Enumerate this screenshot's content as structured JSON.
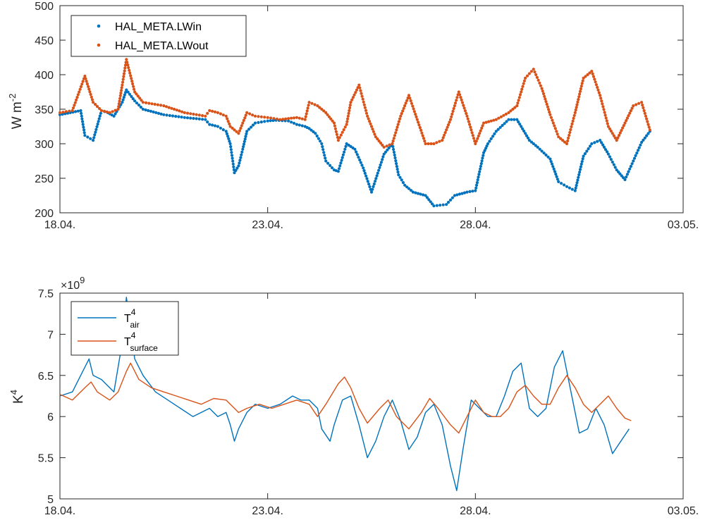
{
  "chart_data": [
    {
      "type": "scatter",
      "xlabel": "",
      "ylabel": "W m",
      "ylabel_exp": "-2",
      "xlim": [
        "2016-04-18",
        "2016-05-03"
      ],
      "ylim": [
        200,
        500
      ],
      "xticks": [
        "18.04.",
        "23.04.",
        "28.04.",
        "03.05."
      ],
      "yticks": [
        "200",
        "250",
        "300",
        "350",
        "400",
        "450",
        "500"
      ],
      "grid": false,
      "legend_position": "top-left",
      "colors": {
        "LWin": "#0072BD",
        "LWout": "#D95319"
      },
      "series": [
        {
          "name": "HAL_META.LWin",
          "color": "#0072BD",
          "points": [
            [
              0,
              342
            ],
            [
              0.5,
              348
            ],
            [
              0.6,
              312
            ],
            [
              0.8,
              305
            ],
            [
              1,
              348
            ],
            [
              1.15,
              345
            ],
            [
              1.3,
              340
            ],
            [
              1.5,
              360
            ],
            [
              1.6,
              378
            ],
            [
              1.8,
              362
            ],
            [
              2,
              350
            ],
            [
              2.5,
              342
            ],
            [
              3,
              338
            ],
            [
              3.5,
              335
            ],
            [
              3.6,
              328
            ],
            [
              3.8,
              325
            ],
            [
              4,
              318
            ],
            [
              4.1,
              300
            ],
            [
              4.2,
              258
            ],
            [
              4.3,
              268
            ],
            [
              4.4,
              292
            ],
            [
              4.5,
              318
            ],
            [
              4.7,
              330
            ],
            [
              5,
              333
            ],
            [
              5.2,
              334
            ],
            [
              5.5,
              333
            ],
            [
              5.7,
              328
            ],
            [
              5.9,
              325
            ],
            [
              6,
              322
            ],
            [
              6.15,
              315
            ],
            [
              6.3,
              300
            ],
            [
              6.4,
              275
            ],
            [
              6.6,
              262
            ],
            [
              6.7,
              260
            ],
            [
              6.9,
              300
            ],
            [
              7.1,
              292
            ],
            [
              7.3,
              265
            ],
            [
              7.5,
              230
            ],
            [
              7.8,
              285
            ],
            [
              8,
              300
            ],
            [
              8.15,
              255
            ],
            [
              8.3,
              240
            ],
            [
              8.5,
              230
            ],
            [
              8.8,
              225
            ],
            [
              9,
              210
            ],
            [
              9.3,
              212
            ],
            [
              9.5,
              225
            ],
            [
              9.8,
              230
            ],
            [
              10,
              232
            ],
            [
              10.2,
              287
            ],
            [
              10.3,
              300
            ],
            [
              10.5,
              318
            ],
            [
              10.8,
              335
            ],
            [
              11,
              335
            ],
            [
              11.3,
              305
            ],
            [
              11.5,
              295
            ],
            [
              11.8,
              278
            ],
            [
              12,
              245
            ],
            [
              12.2,
              238
            ],
            [
              12.4,
              232
            ],
            [
              12.6,
              282
            ],
            [
              12.8,
              300
            ],
            [
              13,
              305
            ],
            [
              13.2,
              285
            ],
            [
              13.4,
              262
            ],
            [
              13.6,
              248
            ],
            [
              13.8,
              275
            ],
            [
              14,
              302
            ],
            [
              14.2,
              318
            ]
          ]
        },
        {
          "name": "HAL_META.LWout",
          "color": "#D95319",
          "points": [
            [
              0,
              345
            ],
            [
              0.3,
              348
            ],
            [
              0.6,
              398
            ],
            [
              0.8,
              360
            ],
            [
              1,
              348
            ],
            [
              1.2,
              345
            ],
            [
              1.4,
              350
            ],
            [
              1.5,
              385
            ],
            [
              1.6,
              422
            ],
            [
              1.8,
              375
            ],
            [
              2,
              360
            ],
            [
              2.5,
              355
            ],
            [
              3,
              345
            ],
            [
              3.5,
              340
            ],
            [
              3.6,
              348
            ],
            [
              3.8,
              345
            ],
            [
              4,
              340
            ],
            [
              4.1,
              325
            ],
            [
              4.2,
              320
            ],
            [
              4.3,
              315
            ],
            [
              4.5,
              345
            ],
            [
              4.7,
              340
            ],
            [
              5,
              338
            ],
            [
              5.3,
              335
            ],
            [
              5.7,
              338
            ],
            [
              5.9,
              335
            ],
            [
              6,
              360
            ],
            [
              6.2,
              355
            ],
            [
              6.4,
              345
            ],
            [
              6.6,
              330
            ],
            [
              6.7,
              305
            ],
            [
              6.9,
              328
            ],
            [
              7,
              360
            ],
            [
              7.2,
              385
            ],
            [
              7.4,
              340
            ],
            [
              7.6,
              310
            ],
            [
              7.8,
              295
            ],
            [
              8,
              300
            ],
            [
              8.2,
              340
            ],
            [
              8.4,
              370
            ],
            [
              8.6,
              335
            ],
            [
              8.8,
              300
            ],
            [
              9,
              300
            ],
            [
              9.2,
              305
            ],
            [
              9.4,
              335
            ],
            [
              9.6,
              375
            ],
            [
              9.8,
              340
            ],
            [
              10,
              300
            ],
            [
              10.2,
              330
            ],
            [
              10.5,
              335
            ],
            [
              10.8,
              345
            ],
            [
              11,
              355
            ],
            [
              11.2,
              395
            ],
            [
              11.4,
              408
            ],
            [
              11.6,
              380
            ],
            [
              11.8,
              342
            ],
            [
              12,
              310
            ],
            [
              12.2,
              300
            ],
            [
              12.4,
              345
            ],
            [
              12.6,
              395
            ],
            [
              12.8,
              405
            ],
            [
              13,
              370
            ],
            [
              13.2,
              325
            ],
            [
              13.4,
              305
            ],
            [
              13.6,
              330
            ],
            [
              13.8,
              355
            ],
            [
              14,
              360
            ],
            [
              14.2,
              320
            ]
          ]
        }
      ]
    },
    {
      "type": "line",
      "xlabel": "",
      "ylabel": "K",
      "ylabel_exp": "4",
      "exponent_label": "×10",
      "exponent_power": "9",
      "xlim": [
        "2016-04-18",
        "2016-05-03"
      ],
      "ylim": [
        5,
        7.5
      ],
      "xticks": [
        "18.04.",
        "23.04.",
        "28.04.",
        "03.05."
      ],
      "yticks": [
        "5",
        "5.5",
        "6",
        "6.5",
        "7",
        "7.5"
      ],
      "grid": false,
      "legend_position": "top-left",
      "colors": {
        "air": "#0072BD",
        "surface": "#D95319"
      },
      "series": [
        {
          "name": "T",
          "name_sup": "4",
          "name_sub": "air",
          "color": "#0072BD",
          "points": [
            [
              0,
              6.25
            ],
            [
              0.3,
              6.3
            ],
            [
              0.6,
              6.6
            ],
            [
              0.7,
              6.7
            ],
            [
              0.8,
              6.5
            ],
            [
              1,
              6.45
            ],
            [
              1.3,
              6.3
            ],
            [
              1.5,
              6.9
            ],
            [
              1.6,
              7.45
            ],
            [
              1.8,
              6.7
            ],
            [
              2,
              6.5
            ],
            [
              2.3,
              6.3
            ],
            [
              2.6,
              6.2
            ],
            [
              2.9,
              6.1
            ],
            [
              3.2,
              6.0
            ],
            [
              3.4,
              6.05
            ],
            [
              3.6,
              6.1
            ],
            [
              3.8,
              6.0
            ],
            [
              4.0,
              6.05
            ],
            [
              4.1,
              5.9
            ],
            [
              4.2,
              5.7
            ],
            [
              4.3,
              5.85
            ],
            [
              4.5,
              6.05
            ],
            [
              4.7,
              6.15
            ],
            [
              5,
              6.1
            ],
            [
              5.3,
              6.15
            ],
            [
              5.6,
              6.25
            ],
            [
              5.8,
              6.2
            ],
            [
              6,
              6.2
            ],
            [
              6.2,
              6.1
            ],
            [
              6.3,
              5.85
            ],
            [
              6.5,
              5.7
            ],
            [
              6.6,
              5.9
            ],
            [
              6.8,
              6.2
            ],
            [
              7,
              6.25
            ],
            [
              7.2,
              5.9
            ],
            [
              7.4,
              5.5
            ],
            [
              7.6,
              5.7
            ],
            [
              7.8,
              6.0
            ],
            [
              8,
              6.2
            ],
            [
              8.2,
              5.95
            ],
            [
              8.4,
              5.6
            ],
            [
              8.6,
              5.75
            ],
            [
              8.8,
              6.05
            ],
            [
              9,
              6.15
            ],
            [
              9.2,
              5.9
            ],
            [
              9.4,
              5.4
            ],
            [
              9.55,
              5.1
            ],
            [
              9.7,
              5.6
            ],
            [
              9.9,
              6.2
            ],
            [
              10.1,
              6.1
            ],
            [
              10.3,
              6.0
            ],
            [
              10.5,
              6.0
            ],
            [
              10.7,
              6.25
            ],
            [
              10.9,
              6.55
            ],
            [
              11.1,
              6.65
            ],
            [
              11.3,
              6.1
            ],
            [
              11.5,
              6.0
            ],
            [
              11.7,
              6.1
            ],
            [
              11.9,
              6.6
            ],
            [
              12.1,
              6.8
            ],
            [
              12.3,
              6.3
            ],
            [
              12.5,
              5.8
            ],
            [
              12.7,
              5.85
            ],
            [
              12.9,
              6.1
            ],
            [
              13.1,
              5.9
            ],
            [
              13.3,
              5.55
            ],
            [
              13.5,
              5.7
            ],
            [
              13.7,
              5.85
            ]
          ]
        },
        {
          "name": "T",
          "name_sup": "4",
          "name_sub": "surface",
          "color": "#D95319",
          "points": [
            [
              0,
              6.27
            ],
            [
              0.3,
              6.2
            ],
            [
              0.6,
              6.35
            ],
            [
              0.75,
              6.42
            ],
            [
              0.9,
              6.3
            ],
            [
              1.2,
              6.2
            ],
            [
              1.4,
              6.3
            ],
            [
              1.6,
              6.55
            ],
            [
              1.7,
              6.65
            ],
            [
              1.9,
              6.45
            ],
            [
              2.2,
              6.35
            ],
            [
              2.5,
              6.3
            ],
            [
              2.8,
              6.25
            ],
            [
              3.1,
              6.2
            ],
            [
              3.4,
              6.15
            ],
            [
              3.7,
              6.22
            ],
            [
              4.0,
              6.2
            ],
            [
              4.2,
              6.1
            ],
            [
              4.3,
              6.05
            ],
            [
              4.5,
              6.1
            ],
            [
              4.8,
              6.15
            ],
            [
              5.1,
              6.1
            ],
            [
              5.4,
              6.15
            ],
            [
              5.7,
              6.2
            ],
            [
              6.0,
              6.15
            ],
            [
              6.2,
              6.0
            ],
            [
              6.4,
              6.15
            ],
            [
              6.7,
              6.4
            ],
            [
              6.85,
              6.48
            ],
            [
              7.0,
              6.35
            ],
            [
              7.2,
              6.1
            ],
            [
              7.4,
              5.92
            ],
            [
              7.7,
              6.1
            ],
            [
              7.9,
              6.2
            ],
            [
              8.1,
              6.0
            ],
            [
              8.4,
              5.85
            ],
            [
              8.7,
              6.05
            ],
            [
              8.9,
              6.22
            ],
            [
              9.1,
              6.1
            ],
            [
              9.4,
              5.9
            ],
            [
              9.6,
              5.8
            ],
            [
              9.8,
              6.0
            ],
            [
              10.0,
              6.2
            ],
            [
              10.2,
              6.05
            ],
            [
              10.4,
              6.0
            ],
            [
              10.6,
              6.0
            ],
            [
              10.8,
              6.1
            ],
            [
              11.0,
              6.3
            ],
            [
              11.2,
              6.38
            ],
            [
              11.4,
              6.25
            ],
            [
              11.6,
              6.15
            ],
            [
              11.8,
              6.15
            ],
            [
              12.0,
              6.35
            ],
            [
              12.2,
              6.5
            ],
            [
              12.4,
              6.35
            ],
            [
              12.6,
              6.15
            ],
            [
              12.8,
              6.05
            ],
            [
              13.0,
              6.15
            ],
            [
              13.2,
              6.25
            ],
            [
              13.4,
              6.1
            ],
            [
              13.6,
              5.98
            ],
            [
              13.75,
              5.95
            ]
          ]
        }
      ]
    }
  ]
}
